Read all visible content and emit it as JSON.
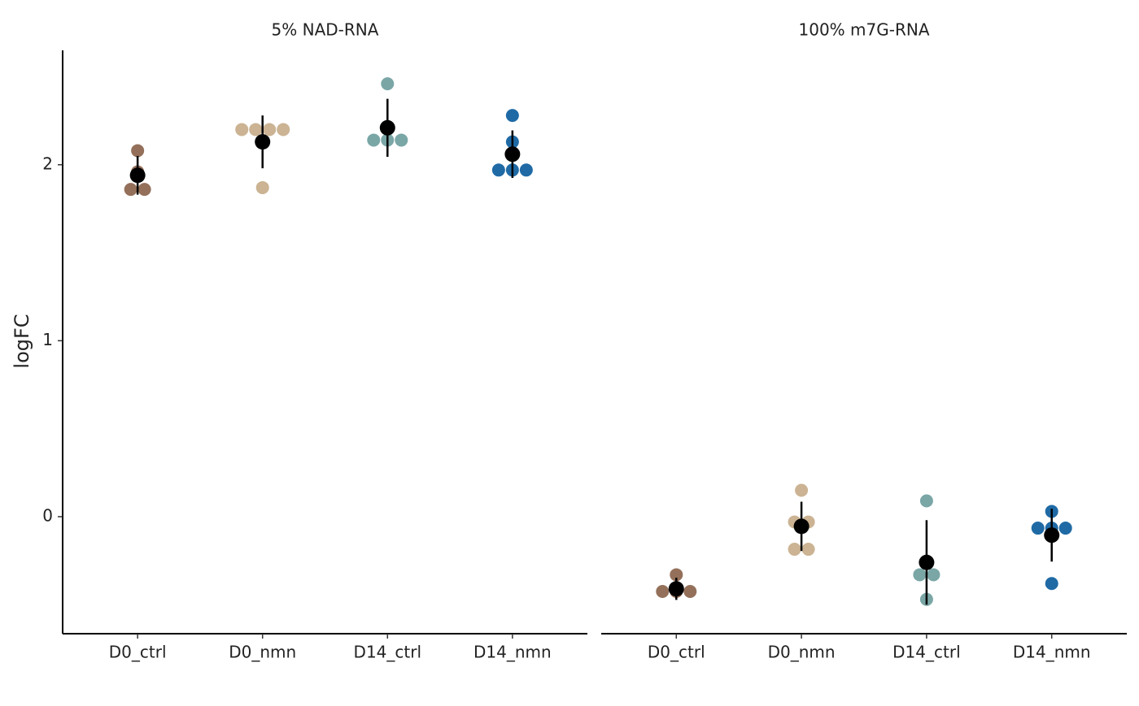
{
  "chart_data": [
    {
      "type": "dot",
      "title": "5% NAD-RNA",
      "ylabel": "logFC",
      "categories": [
        "D0_ctrl",
        "D0_nmn",
        "D14_ctrl",
        "D14_nmn"
      ],
      "colors": [
        "#94705a",
        "#cbb393",
        "#7aa6a6",
        "#1f6aa5"
      ],
      "points": [
        [
          2.08,
          1.96,
          1.86,
          1.86
        ],
        [
          2.2,
          2.2,
          2.2,
          2.2,
          1.87
        ],
        [
          2.46,
          2.14,
          2.14,
          2.14
        ],
        [
          2.28,
          2.13,
          1.97,
          1.97,
          1.97
        ]
      ],
      "means": [
        1.94,
        2.13,
        2.21,
        2.06
      ],
      "errors": [
        0.11,
        0.15,
        0.165,
        0.135
      ],
      "ylim": [
        -0.665,
        2.65
      ],
      "yticks": [
        0,
        1,
        2
      ]
    },
    {
      "type": "dot",
      "title": "100% m7G-RNA",
      "categories": [
        "D0_ctrl",
        "D0_nmn",
        "D14_ctrl",
        "D14_nmn"
      ],
      "colors": [
        "#94705a",
        "#cbb393",
        "#7aa6a6",
        "#1f6aa5"
      ],
      "points": [
        [
          -0.33,
          -0.425,
          -0.425,
          -0.425
        ],
        [
          0.15,
          -0.03,
          -0.03,
          -0.185,
          -0.185
        ],
        [
          0.09,
          -0.33,
          -0.33,
          -0.47
        ],
        [
          0.03,
          -0.065,
          -0.065,
          -0.065,
          -0.38
        ]
      ],
      "means": [
        -0.41,
        -0.055,
        -0.26,
        -0.105
      ],
      "errors": [
        0.063,
        0.14,
        0.24,
        0.15
      ],
      "ylim": [
        -0.665,
        2.65
      ]
    }
  ]
}
